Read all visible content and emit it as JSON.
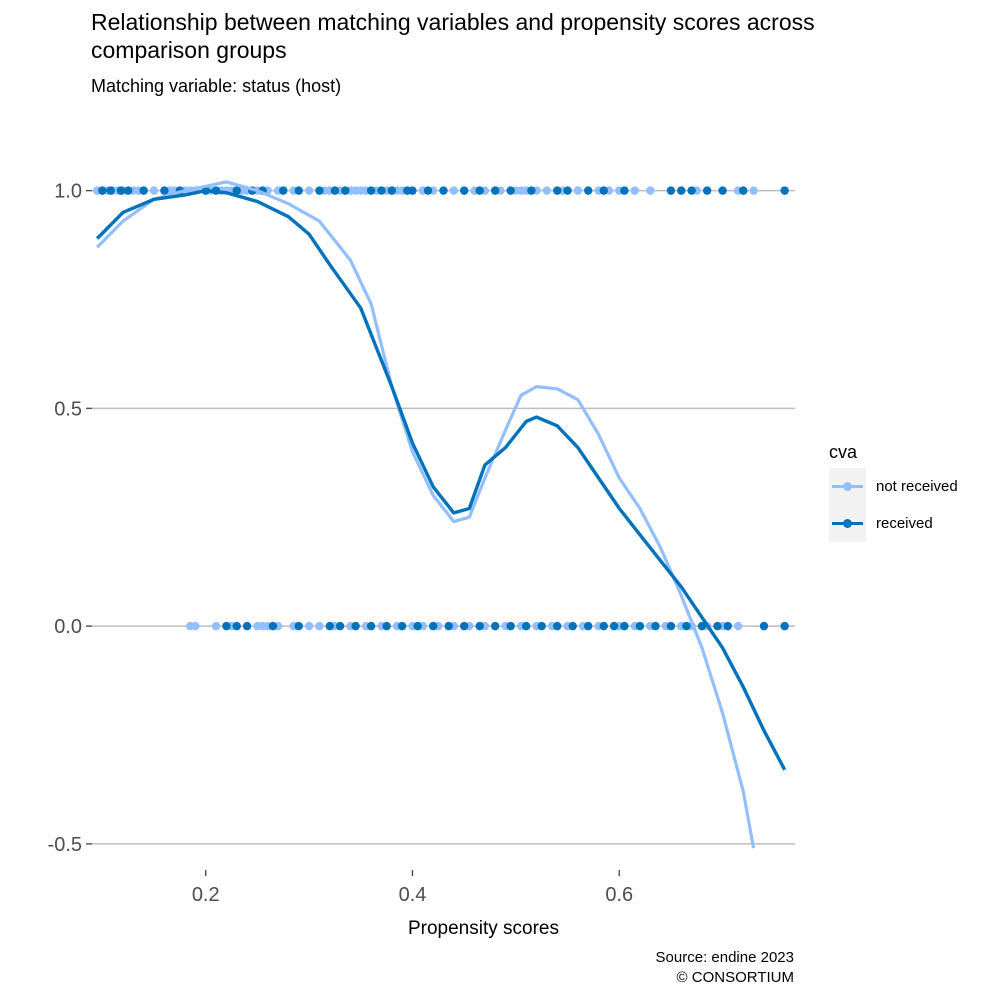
{
  "chart_data": {
    "type": "scatter",
    "title": "Relationship between matching variables and propensity scores across comparison groups",
    "subtitle": "Matching variable: status (host)",
    "xlabel": "Propensity scores",
    "ylabel": "",
    "xlim": [
      0.09,
      0.77
    ],
    "ylim": [
      -0.56,
      1.13
    ],
    "x_ticks": [
      {
        "value": 0.2,
        "label": "0.2"
      },
      {
        "value": 0.4,
        "label": "0.4"
      },
      {
        "value": 0.6,
        "label": "0.6"
      }
    ],
    "y_ticks": [
      {
        "value": 1.0,
        "label": "1.0"
      },
      {
        "value": 0.5,
        "label": "0.5"
      },
      {
        "value": 0.0,
        "label": "0.0"
      },
      {
        "value": -0.5,
        "label": "-0.5"
      }
    ],
    "grid": "horizontal",
    "legend": {
      "title": "cva",
      "position": "right"
    },
    "series": [
      {
        "name": "not received",
        "color": "#91bfff",
        "points_y1": [
          0.095,
          0.1,
          0.105,
          0.11,
          0.115,
          0.12,
          0.13,
          0.135,
          0.15,
          0.165,
          0.17,
          0.18,
          0.185,
          0.19,
          0.2,
          0.205,
          0.215,
          0.22,
          0.225,
          0.235,
          0.24,
          0.25,
          0.26,
          0.27,
          0.285,
          0.3,
          0.315,
          0.32,
          0.33,
          0.34,
          0.345,
          0.35,
          0.355,
          0.365,
          0.375,
          0.385,
          0.39,
          0.41,
          0.42,
          0.44,
          0.46,
          0.47,
          0.485,
          0.5,
          0.505,
          0.51,
          0.52,
          0.53,
          0.545,
          0.56,
          0.58,
          0.59,
          0.6,
          0.615,
          0.63,
          0.675,
          0.715,
          0.73
        ],
        "points_y0": [
          0.185,
          0.19,
          0.21,
          0.225,
          0.25,
          0.255,
          0.26,
          0.27,
          0.285,
          0.3,
          0.31,
          0.325,
          0.34,
          0.355,
          0.37,
          0.385,
          0.4,
          0.41,
          0.425,
          0.44,
          0.455,
          0.47,
          0.49,
          0.505,
          0.52,
          0.535,
          0.55,
          0.565,
          0.58,
          0.6,
          0.615,
          0.63,
          0.645,
          0.66,
          0.67,
          0.685,
          0.7,
          0.715
        ],
        "smooth": [
          [
            0.095,
            0.87
          ],
          [
            0.12,
            0.93
          ],
          [
            0.15,
            0.98
          ],
          [
            0.18,
            1.0
          ],
          [
            0.2,
            1.01
          ],
          [
            0.22,
            1.02
          ],
          [
            0.25,
            1.0
          ],
          [
            0.28,
            0.97
          ],
          [
            0.31,
            0.93
          ],
          [
            0.34,
            0.84
          ],
          [
            0.36,
            0.74
          ],
          [
            0.38,
            0.55
          ],
          [
            0.4,
            0.4
          ],
          [
            0.42,
            0.3
          ],
          [
            0.44,
            0.24
          ],
          [
            0.455,
            0.25
          ],
          [
            0.47,
            0.34
          ],
          [
            0.49,
            0.45
          ],
          [
            0.505,
            0.53
          ],
          [
            0.52,
            0.55
          ],
          [
            0.54,
            0.545
          ],
          [
            0.56,
            0.52
          ],
          [
            0.58,
            0.44
          ],
          [
            0.6,
            0.34
          ],
          [
            0.62,
            0.27
          ],
          [
            0.64,
            0.18
          ],
          [
            0.66,
            0.07
          ],
          [
            0.68,
            -0.05
          ],
          [
            0.7,
            -0.2
          ],
          [
            0.72,
            -0.38
          ],
          [
            0.73,
            -0.51
          ]
        ]
      },
      {
        "name": "received",
        "color": "#0072bc",
        "points_y1": [
          0.1,
          0.108,
          0.118,
          0.125,
          0.14,
          0.16,
          0.175,
          0.2,
          0.21,
          0.23,
          0.245,
          0.255,
          0.275,
          0.29,
          0.31,
          0.325,
          0.335,
          0.36,
          0.37,
          0.38,
          0.395,
          0.4,
          0.415,
          0.43,
          0.45,
          0.465,
          0.48,
          0.495,
          0.515,
          0.54,
          0.55,
          0.57,
          0.585,
          0.605,
          0.65,
          0.66,
          0.67,
          0.685,
          0.7,
          0.72,
          0.76
        ],
        "points_y0": [
          0.22,
          0.23,
          0.24,
          0.265,
          0.29,
          0.32,
          0.33,
          0.345,
          0.36,
          0.375,
          0.39,
          0.405,
          0.42,
          0.435,
          0.45,
          0.465,
          0.48,
          0.495,
          0.51,
          0.525,
          0.54,
          0.555,
          0.57,
          0.585,
          0.595,
          0.605,
          0.62,
          0.635,
          0.65,
          0.665,
          0.68,
          0.695,
          0.705,
          0.74,
          0.76
        ],
        "smooth": [
          [
            0.095,
            0.89
          ],
          [
            0.12,
            0.95
          ],
          [
            0.15,
            0.98
          ],
          [
            0.18,
            0.99
          ],
          [
            0.2,
            1.0
          ],
          [
            0.22,
            0.995
          ],
          [
            0.25,
            0.975
          ],
          [
            0.28,
            0.94
          ],
          [
            0.3,
            0.9
          ],
          [
            0.32,
            0.83
          ],
          [
            0.35,
            0.73
          ],
          [
            0.38,
            0.55
          ],
          [
            0.4,
            0.42
          ],
          [
            0.42,
            0.32
          ],
          [
            0.44,
            0.26
          ],
          [
            0.455,
            0.27
          ],
          [
            0.47,
            0.37
          ],
          [
            0.49,
            0.41
          ],
          [
            0.51,
            0.47
          ],
          [
            0.52,
            0.48
          ],
          [
            0.54,
            0.46
          ],
          [
            0.56,
            0.41
          ],
          [
            0.58,
            0.34
          ],
          [
            0.6,
            0.27
          ],
          [
            0.62,
            0.21
          ],
          [
            0.64,
            0.15
          ],
          [
            0.66,
            0.09
          ],
          [
            0.68,
            0.02
          ],
          [
            0.7,
            -0.05
          ],
          [
            0.72,
            -0.14
          ],
          [
            0.74,
            -0.24
          ],
          [
            0.76,
            -0.33
          ]
        ]
      }
    ]
  },
  "caption": {
    "source": "Source: endine 2023",
    "copyright": "© CONSORTIUM"
  }
}
